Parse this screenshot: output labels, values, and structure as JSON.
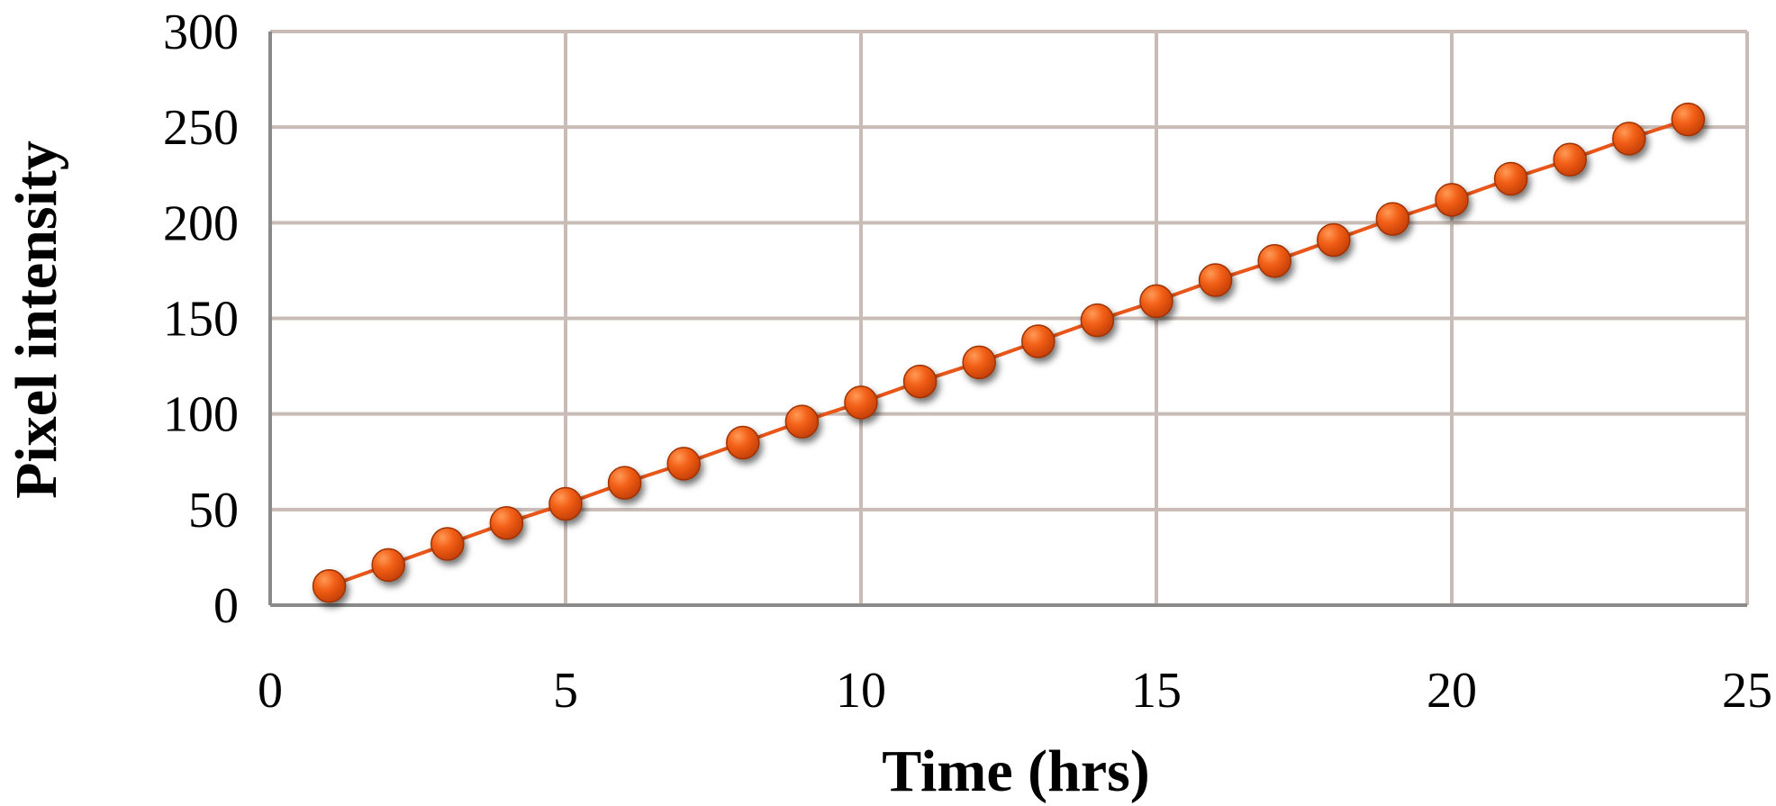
{
  "chart_data": {
    "type": "line",
    "title": "",
    "xlabel": "Time (hrs)",
    "ylabel": "Pixel intensity",
    "xlim": [
      0,
      25
    ],
    "ylim": [
      0,
      300
    ],
    "x_ticks": [
      0,
      5,
      10,
      15,
      20,
      25
    ],
    "y_ticks": [
      0,
      50,
      100,
      150,
      200,
      250,
      300
    ],
    "grid": true,
    "legend": "none",
    "markers": "circle",
    "colors": {
      "marker_fill": "#f05a14",
      "line": "#e8561a",
      "grid": "#c9bcb6",
      "axis": "#8a8a8a"
    },
    "series": [
      {
        "x": [
          1,
          2,
          3,
          4,
          5,
          6,
          7,
          8,
          9,
          10,
          11,
          12,
          13,
          14,
          15,
          16,
          17,
          18,
          19,
          20,
          21,
          22,
          23,
          24
        ],
        "y": [
          10,
          21,
          32,
          43,
          53,
          64,
          74,
          85,
          96,
          106,
          117,
          127,
          138,
          149,
          159,
          170,
          180,
          191,
          202,
          212,
          223,
          233,
          244,
          254
        ]
      }
    ]
  }
}
